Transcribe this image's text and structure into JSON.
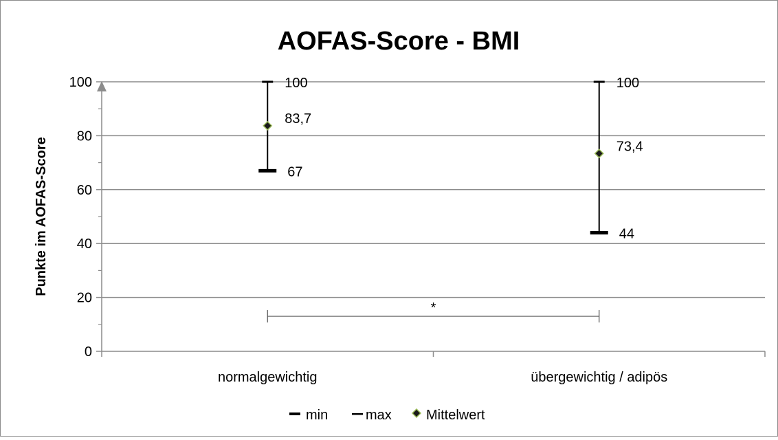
{
  "chart_data": {
    "type": "range-plot",
    "title": "AOFAS-Score - BMI",
    "ylabel": "Punkte im AOFAS-Score",
    "xlabel": "",
    "ylim": [
      0,
      100
    ],
    "y_ticks": [
      "0",
      "20",
      "40",
      "60",
      "80",
      "100"
    ],
    "y_tick_values": [
      0,
      20,
      40,
      60,
      80,
      100
    ],
    "categories": [
      "normalgewichtig",
      "übergewichtig / adipös"
    ],
    "series": [
      {
        "name": "min",
        "values": [
          67,
          44
        ],
        "labels": [
          "67",
          "44"
        ],
        "marker": "thick-bar"
      },
      {
        "name": "max",
        "values": [
          100,
          100
        ],
        "labels": [
          "100",
          "100"
        ],
        "marker": "bar"
      },
      {
        "name": "Mittelwert",
        "values": [
          83.7,
          73.4
        ],
        "labels": [
          "83,7",
          "73,4"
        ],
        "marker": "diamond"
      }
    ],
    "significance": {
      "text": "*",
      "between": [
        0,
        1
      ],
      "y": 13
    },
    "grid": true,
    "legend_position": "bottom",
    "colors": {
      "grid": "#8c8c8c",
      "axis": "#8c8c8c",
      "text": "#000000",
      "marker_fill": "#1a1a1a",
      "marker_stroke": "#9bbb59",
      "arrow": "#8c8c8c",
      "frame": "#8c8c8c"
    }
  }
}
